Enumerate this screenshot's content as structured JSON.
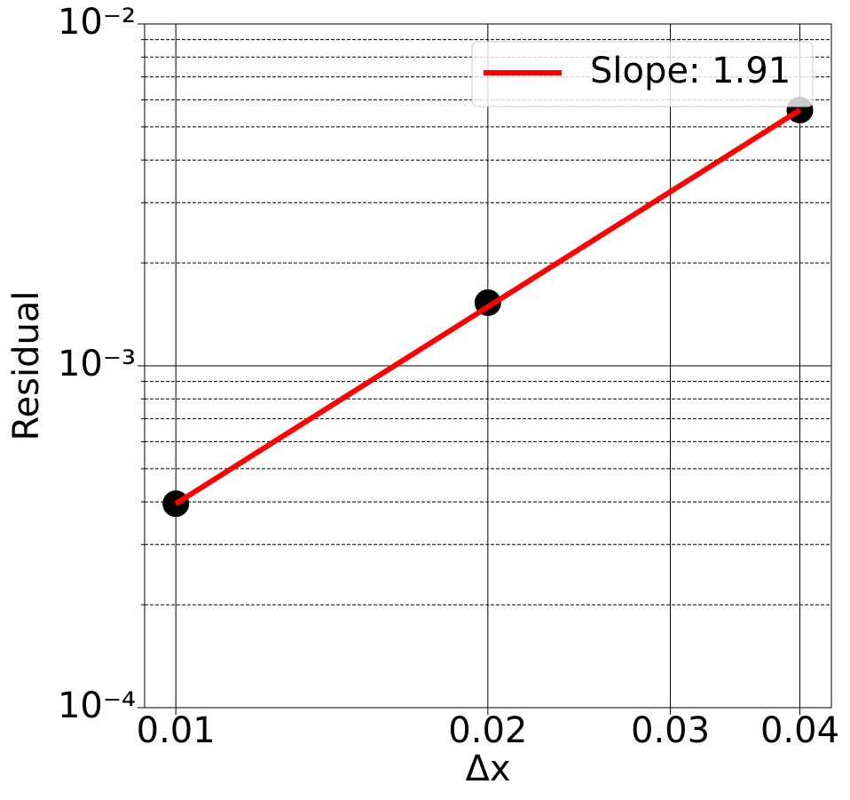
{
  "chart_data": {
    "type": "loglog",
    "xlabel": "Δx",
    "ylabel": "Residual",
    "xlog": true,
    "ylog": true,
    "xlim": [
      0.00933,
      0.0429
    ],
    "ylim": [
      0.0001,
      0.01
    ],
    "xticks": [
      0.01,
      0.02,
      0.03,
      0.04
    ],
    "yticks": [
      {
        "value": 0.0001,
        "label": "10⁻⁴"
      },
      {
        "value": 0.001,
        "label": "10⁻³"
      },
      {
        "value": 0.01,
        "label": "10⁻²"
      }
    ],
    "y_minor_ticks": [
      0.0002,
      0.0003,
      0.0004,
      0.0005,
      0.0006,
      0.0007,
      0.0008,
      0.0009,
      0.002,
      0.003,
      0.004,
      0.005,
      0.006,
      0.007,
      0.008,
      0.009
    ],
    "grid": true,
    "legend_position": "upper right",
    "points": {
      "color": "#000000",
      "x": [
        0.01,
        0.02,
        0.04
      ],
      "values": [
        0.000395,
        0.00153,
        0.0056
      ]
    },
    "series": [
      {
        "name": "Slope: 1.91",
        "color": "#ff0000",
        "x": [
          0.01,
          0.04
        ],
        "values": [
          0.000395,
          0.0056
        ]
      }
    ]
  }
}
